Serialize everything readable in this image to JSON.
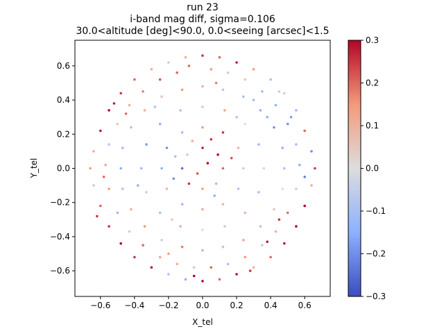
{
  "chart_data": {
    "type": "scatter",
    "title": [
      "run 23",
      "i-band mag diff,  sigma=0.106",
      "30.0<altitude [deg]<90.0, 0.0<seeing [arcsec]<1.5"
    ],
    "xlabel": "X_tel",
    "ylabel": "Y_tel",
    "xlim": [
      -0.75,
      0.75
    ],
    "ylim": [
      -0.75,
      0.75
    ],
    "xticks": [
      -0.6,
      -0.4,
      -0.2,
      0.0,
      0.2,
      0.4,
      0.6
    ],
    "xtick_labels": [
      "−0.6",
      "−0.4",
      "−0.2",
      "0.0",
      "0.2",
      "0.4",
      "0.6"
    ],
    "yticks": [
      -0.6,
      -0.4,
      -0.2,
      0.0,
      0.2,
      0.4,
      0.6
    ],
    "ytick_labels": [
      "−0.6",
      "−0.4",
      "−0.2",
      "0.0",
      "0.2",
      "0.4",
      "0.6"
    ],
    "grid": false,
    "colorbar": {
      "cmap": "coolwarm",
      "range": [
        -0.3,
        0.3
      ],
      "ticks": [
        -0.3,
        -0.2,
        -0.1,
        0.0,
        0.1,
        0.2,
        0.3
      ],
      "tick_labels": [
        "−0.3",
        "−0.2",
        "−0.1",
        "0.0",
        "0.1",
        "0.2",
        "0.3"
      ],
      "colors": [
        "#3b4cc0",
        "#8db0fe",
        "#dddddd",
        "#f49a7b",
        "#b40426"
      ]
    },
    "point_note": "sample of points (x, y, mag diff)",
    "points": [
      [
        0.0,
        0.66,
        0.25
      ],
      [
        0.1,
        0.65,
        0.2
      ],
      [
        -0.1,
        0.65,
        0.1
      ],
      [
        0.2,
        0.62,
        0.28
      ],
      [
        -0.2,
        0.62,
        -0.05
      ],
      [
        0.3,
        0.58,
        0.15
      ],
      [
        -0.3,
        0.58,
        0.1
      ],
      [
        0.4,
        0.52,
        -0.1
      ],
      [
        -0.4,
        0.52,
        0.2
      ],
      [
        0.48,
        0.44,
        0.05
      ],
      [
        -0.48,
        0.44,
        0.25
      ],
      [
        0.55,
        0.34,
        -0.12
      ],
      [
        -0.55,
        0.34,
        0.3
      ],
      [
        0.6,
        0.22,
        0.2
      ],
      [
        -0.6,
        0.22,
        0.28
      ],
      [
        0.64,
        0.1,
        -0.2
      ],
      [
        -0.64,
        0.1,
        0.1
      ],
      [
        0.66,
        0.0,
        0.25
      ],
      [
        -0.66,
        0.0,
        0.15
      ],
      [
        0.64,
        -0.1,
        0.1
      ],
      [
        -0.64,
        -0.1,
        -0.05
      ],
      [
        0.6,
        -0.22,
        0.3
      ],
      [
        -0.6,
        -0.22,
        0.2
      ],
      [
        0.55,
        -0.34,
        0.3
      ],
      [
        -0.55,
        -0.34,
        0.25
      ],
      [
        0.48,
        -0.44,
        0.28
      ],
      [
        -0.48,
        -0.44,
        0.3
      ],
      [
        0.4,
        -0.52,
        0.2
      ],
      [
        -0.4,
        -0.52,
        0.25
      ],
      [
        0.3,
        -0.58,
        0.1
      ],
      [
        -0.3,
        -0.58,
        0.28
      ],
      [
        0.2,
        -0.62,
        0.3
      ],
      [
        -0.2,
        -0.62,
        -0.1
      ],
      [
        0.1,
        -0.65,
        0.2
      ],
      [
        -0.1,
        -0.65,
        -0.15
      ],
      [
        0.0,
        -0.66,
        0.3
      ],
      [
        0.05,
        0.58,
        0.15
      ],
      [
        0.15,
        0.56,
        -0.05
      ],
      [
        -0.15,
        0.56,
        0.2
      ],
      [
        0.25,
        0.52,
        0.05
      ],
      [
        -0.25,
        0.52,
        0.22
      ],
      [
        0.35,
        0.45,
        -0.12
      ],
      [
        -0.35,
        0.45,
        0.18
      ],
      [
        0.43,
        0.37,
        -0.15
      ],
      [
        -0.43,
        0.37,
        0.1
      ],
      [
        0.5,
        0.26,
        -0.2
      ],
      [
        -0.5,
        0.26,
        0.05
      ],
      [
        0.55,
        0.14,
        -0.1
      ],
      [
        -0.55,
        0.14,
        -0.08
      ],
      [
        0.57,
        0.02,
        -0.15
      ],
      [
        -0.57,
        0.02,
        0.12
      ],
      [
        0.55,
        -0.12,
        -0.05
      ],
      [
        -0.55,
        -0.12,
        0.15
      ],
      [
        0.5,
        -0.26,
        0.2
      ],
      [
        -0.5,
        -0.26,
        -0.12
      ],
      [
        0.43,
        -0.37,
        0.1
      ],
      [
        -0.43,
        -0.37,
        0.05
      ],
      [
        0.35,
        -0.45,
        -0.05
      ],
      [
        -0.35,
        -0.45,
        0.2
      ],
      [
        0.25,
        -0.52,
        0.15
      ],
      [
        -0.25,
        -0.52,
        0.12
      ],
      [
        0.15,
        -0.56,
        -0.1
      ],
      [
        -0.15,
        -0.56,
        0.1
      ],
      [
        0.05,
        -0.58,
        0.2
      ],
      [
        -0.05,
        -0.58,
        -0.05
      ],
      [
        0.0,
        0.48,
        0.1
      ],
      [
        0.12,
        0.46,
        -0.08
      ],
      [
        -0.12,
        0.46,
        0.15
      ],
      [
        0.24,
        0.42,
        -0.1
      ],
      [
        -0.24,
        0.42,
        0.05
      ],
      [
        0.34,
        0.34,
        -0.14
      ],
      [
        -0.34,
        0.34,
        0.1
      ],
      [
        0.42,
        0.24,
        -0.2
      ],
      [
        -0.42,
        0.24,
        -0.1
      ],
      [
        0.47,
        0.12,
        -0.15
      ],
      [
        -0.47,
        0.12,
        -0.12
      ],
      [
        0.48,
        0.0,
        -0.1
      ],
      [
        -0.48,
        0.0,
        -0.15
      ],
      [
        0.47,
        -0.12,
        0.0
      ],
      [
        -0.47,
        -0.12,
        -0.1
      ],
      [
        0.42,
        -0.24,
        0.05
      ],
      [
        -0.42,
        -0.24,
        0.1
      ],
      [
        0.34,
        -0.34,
        -0.08
      ],
      [
        -0.34,
        -0.34,
        0.15
      ],
      [
        0.24,
        -0.42,
        0.12
      ],
      [
        -0.24,
        -0.42,
        -0.05
      ],
      [
        0.12,
        -0.46,
        0.08
      ],
      [
        -0.12,
        -0.46,
        0.18
      ],
      [
        0.0,
        -0.48,
        -0.1
      ],
      [
        0.0,
        0.36,
        0.05
      ],
      [
        0.13,
        0.34,
        0.12
      ],
      [
        -0.13,
        0.34,
        -0.1
      ],
      [
        0.25,
        0.26,
        0.0
      ],
      [
        -0.25,
        0.26,
        -0.15
      ],
      [
        0.33,
        0.14,
        -0.12
      ],
      [
        -0.33,
        0.14,
        -0.18
      ],
      [
        0.36,
        0.0,
        0.02
      ],
      [
        -0.36,
        0.0,
        -0.12
      ],
      [
        0.33,
        -0.14,
        -0.1
      ],
      [
        -0.33,
        -0.14,
        -0.05
      ],
      [
        0.25,
        -0.26,
        0.1
      ],
      [
        -0.25,
        -0.26,
        -0.1
      ],
      [
        0.13,
        -0.34,
        -0.05
      ],
      [
        -0.13,
        -0.34,
        0.1
      ],
      [
        0.0,
        -0.36,
        0.0
      ],
      [
        0.0,
        0.24,
        0.15
      ],
      [
        0.12,
        0.21,
        0.25
      ],
      [
        -0.12,
        0.21,
        -0.1
      ],
      [
        0.21,
        0.12,
        0.1
      ],
      [
        -0.21,
        0.12,
        -0.2
      ],
      [
        0.24,
        0.0,
        0.05
      ],
      [
        -0.24,
        0.0,
        -0.15
      ],
      [
        0.21,
        -0.12,
        -0.1
      ],
      [
        -0.21,
        -0.12,
        0.1
      ],
      [
        0.12,
        -0.21,
        0.08
      ],
      [
        -0.12,
        -0.21,
        -0.12
      ],
      [
        0.0,
        -0.24,
        0.12
      ],
      [
        0.0,
        0.12,
        0.28
      ],
      [
        0.09,
        0.08,
        0.3
      ],
      [
        -0.09,
        0.08,
        -0.05
      ],
      [
        0.12,
        0.0,
        0.2
      ],
      [
        -0.12,
        0.0,
        -0.25
      ],
      [
        0.08,
        -0.09,
        -0.1
      ],
      [
        -0.08,
        -0.09,
        0.25
      ],
      [
        0.0,
        -0.12,
        0.15
      ],
      [
        0.03,
        0.03,
        0.3
      ],
      [
        -0.03,
        -0.03,
        0.22
      ],
      [
        0.05,
        0.17,
        0.25
      ],
      [
        -0.06,
        0.16,
        0.1
      ],
      [
        0.17,
        0.06,
        0.22
      ],
      [
        -0.17,
        -0.06,
        -0.2
      ],
      [
        0.07,
        -0.16,
        -0.15
      ],
      [
        -0.16,
        0.07,
        -0.1
      ],
      [
        0.3,
        0.4,
        -0.12
      ],
      [
        0.38,
        0.3,
        -0.15
      ],
      [
        0.45,
        -0.3,
        0.25
      ],
      [
        0.38,
        -0.43,
        0.28
      ],
      [
        -0.45,
        0.32,
        0.2
      ],
      [
        -0.52,
        0.38,
        0.28
      ],
      [
        -0.58,
        -0.05,
        0.2
      ],
      [
        -0.62,
        -0.28,
        0.25
      ],
      [
        0.28,
        -0.6,
        0.25
      ],
      [
        -0.05,
        -0.63,
        0.3
      ],
      [
        0.52,
        0.3,
        -0.18
      ],
      [
        0.6,
        -0.05,
        -0.22
      ],
      [
        -0.38,
        -0.1,
        -0.15
      ],
      [
        -0.28,
        0.36,
        -0.1
      ],
      [
        0.2,
        0.3,
        -0.08
      ],
      [
        -0.18,
        -0.3,
        0.05
      ],
      [
        0.08,
        0.5,
        0.18
      ],
      [
        -0.08,
        0.6,
        0.2
      ],
      [
        0.45,
        0.45,
        -0.05
      ],
      [
        -0.2,
        -0.5,
        0.15
      ]
    ]
  }
}
